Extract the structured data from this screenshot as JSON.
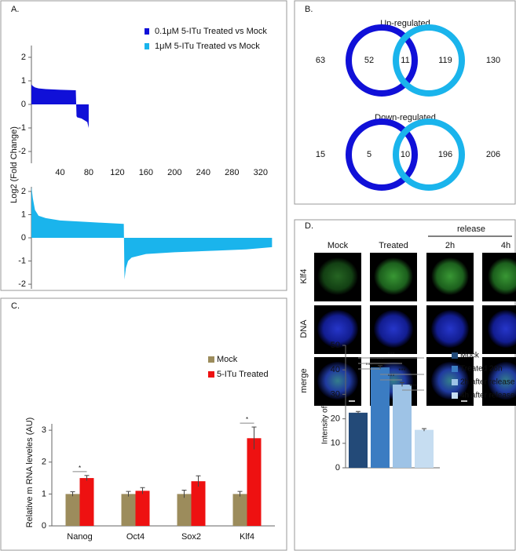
{
  "panel_labels": [
    "A.",
    "B.",
    "C.",
    "D."
  ],
  "venn": [
    {
      "title": "Up-regulated",
      "total_left": 63,
      "left_only": 52,
      "both": 11,
      "right_only": 119,
      "total_right": 130
    },
    {
      "title": "Down-regulated",
      "total_left": 15,
      "left_only": 5,
      "both": 10,
      "right_only": 196,
      "total_right": 206
    }
  ],
  "microscopy": {
    "columns": [
      "Mock",
      "Treated",
      "2h",
      "4h"
    ],
    "group_label": "release",
    "rows": [
      "Klf4",
      "DNA",
      "merge"
    ]
  },
  "chart_data": [
    {
      "type": "area",
      "ylabel": "Log2 (Fold Change)",
      "x": [
        0,
        2,
        5,
        10,
        20,
        40,
        62,
        63,
        64,
        70,
        78,
        80
      ],
      "series": [
        {
          "name": "0.1μM 5-ITu Treated vs Mock",
          "color": "#1010d8",
          "values": [
            0.85,
            0.78,
            0.72,
            0.68,
            0.65,
            0.62,
            0.6,
            -0.5,
            -0.55,
            -0.6,
            -0.75,
            -1.0
          ]
        }
      ],
      "xlim": [
        0,
        340
      ],
      "xticks": [
        40,
        80,
        120,
        160,
        200,
        240,
        280,
        320
      ],
      "ylim": [
        -2.5,
        2.5
      ],
      "yticks": [
        -2,
        -1,
        0,
        1,
        2
      ]
    },
    {
      "type": "area",
      "x": [
        0,
        2,
        5,
        10,
        20,
        40,
        80,
        129,
        130,
        132,
        135,
        140,
        160,
        200,
        260,
        300,
        336
      ],
      "series": [
        {
          "name": "1μM 5-ITu Treated vs Mock",
          "color": "#1ab4ec",
          "values": [
            2.2,
            1.7,
            1.2,
            0.95,
            0.85,
            0.75,
            0.68,
            0.6,
            -1.8,
            -1.3,
            -1.0,
            -0.85,
            -0.7,
            -0.62,
            -0.55,
            -0.5,
            -0.4
          ]
        }
      ],
      "xlim": [
        0,
        340
      ],
      "ylim": [
        -2.2,
        2.2
      ],
      "yticks": [
        -2,
        -1,
        0,
        1,
        2
      ]
    },
    {
      "type": "bar",
      "ylabel": "Relative m RNA leveles (AU)",
      "categories": [
        "Nanog",
        "Oct4",
        "Sox2",
        "Klf4"
      ],
      "series": [
        {
          "name": "Mock",
          "color": "#9c8c5c",
          "values": [
            1,
            1,
            1,
            1
          ],
          "errors": [
            0.07,
            0.08,
            0.12,
            0.08
          ]
        },
        {
          "name": "5-ITu Treated",
          "color": "#ee1111",
          "values": [
            1.5,
            1.1,
            1.4,
            2.75
          ],
          "errors": [
            0.08,
            0.1,
            0.17,
            0.35
          ]
        }
      ],
      "ylim": [
        0,
        3.2
      ],
      "yticks": [
        0,
        1,
        2,
        3
      ],
      "annotations": [
        "*",
        "*"
      ]
    },
    {
      "type": "bar",
      "ylabel": "Intensity of Klf4 (AU)",
      "series": [
        {
          "name": "Mock",
          "color": "#234a78",
          "values": [
            22.5
          ],
          "errors": [
            0.5
          ]
        },
        {
          "name": "Treated 26h",
          "color": "#3b7cc2",
          "values": [
            41
          ],
          "errors": [
            0.7
          ]
        },
        {
          "name": "2h after release",
          "color": "#9ec3e6",
          "values": [
            34
          ],
          "errors": [
            0.8
          ]
        },
        {
          "name": "4h after release",
          "color": "#c6ddf1",
          "values": [
            15.5
          ],
          "errors": [
            0.5
          ]
        }
      ],
      "ylim": [
        0,
        50
      ],
      "yticks": [
        0,
        10,
        20,
        30,
        40,
        50
      ],
      "annotations": [
        "***",
        "***",
        "***",
        "***",
        "***",
        "***"
      ]
    }
  ]
}
